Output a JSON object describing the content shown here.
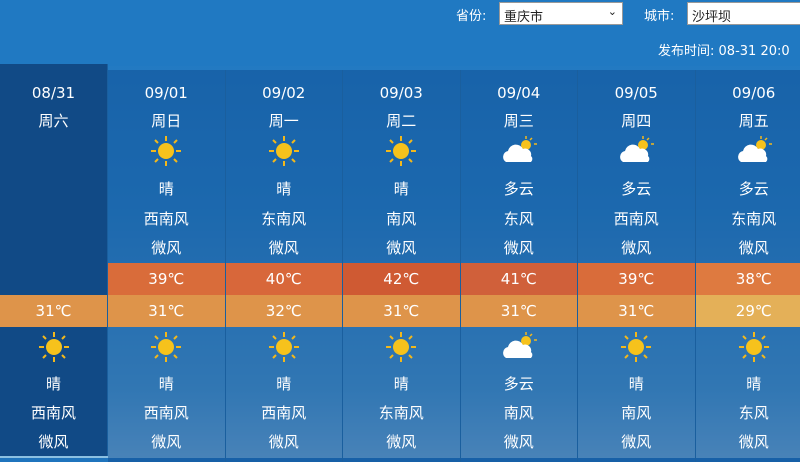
{
  "header": {
    "province_label": "省份:",
    "province_value": "重庆市",
    "city_label": "城市:",
    "city_value": "沙坪坝",
    "publish_label": "发布时间:",
    "publish_value": "08-31 20:0"
  },
  "colors": {
    "high_temp": [
      "#d96c3a",
      "#d8673a",
      "#cf5a33",
      "#d0603a",
      "#d96c3a",
      "#de7a40"
    ],
    "low_temp": [
      "#de944a",
      "#de944a",
      "#de944a",
      "#de944a",
      "#de944a",
      "#de944a",
      "#e4b058"
    ]
  },
  "days": [
    {
      "date": "08/31",
      "week": "周六",
      "high": "",
      "low": "31℃",
      "day_icon": "",
      "day_weather": "",
      "day_wind": "",
      "day_level": "",
      "night_icon": "sun-icon",
      "night_weather": "晴",
      "night_wind": "西南风",
      "night_level": "微风"
    },
    {
      "date": "09/01",
      "week": "周日",
      "high": "39℃",
      "low": "31℃",
      "day_icon": "sun-icon",
      "day_weather": "晴",
      "day_wind": "西南风",
      "day_level": "微风",
      "night_icon": "sun-icon",
      "night_weather": "晴",
      "night_wind": "西南风",
      "night_level": "微风"
    },
    {
      "date": "09/02",
      "week": "周一",
      "high": "40℃",
      "low": "32℃",
      "day_icon": "sun-icon",
      "day_weather": "晴",
      "day_wind": "东南风",
      "day_level": "微风",
      "night_icon": "sun-icon",
      "night_weather": "晴",
      "night_wind": "西南风",
      "night_level": "微风"
    },
    {
      "date": "09/03",
      "week": "周二",
      "high": "42℃",
      "low": "31℃",
      "day_icon": "sun-icon",
      "day_weather": "晴",
      "day_wind": "南风",
      "day_level": "微风",
      "night_icon": "sun-icon",
      "night_weather": "晴",
      "night_wind": "东南风",
      "night_level": "微风"
    },
    {
      "date": "09/04",
      "week": "周三",
      "high": "41℃",
      "low": "31℃",
      "day_icon": "cloud-sun-icon",
      "day_weather": "多云",
      "day_wind": "东风",
      "day_level": "微风",
      "night_icon": "cloud-sun-icon",
      "night_weather": "多云",
      "night_wind": "南风",
      "night_level": "微风"
    },
    {
      "date": "09/05",
      "week": "周四",
      "high": "39℃",
      "low": "31℃",
      "day_icon": "cloud-sun-icon",
      "day_weather": "多云",
      "day_wind": "西南风",
      "day_level": "微风",
      "night_icon": "sun-icon",
      "night_weather": "晴",
      "night_wind": "南风",
      "night_level": "微风"
    },
    {
      "date": "09/06",
      "week": "周五",
      "high": "38℃",
      "low": "29℃",
      "day_icon": "cloud-sun-icon",
      "day_weather": "多云",
      "day_wind": "东南风",
      "day_level": "微风",
      "night_icon": "sun-icon",
      "night_weather": "晴",
      "night_wind": "东风",
      "night_level": "微风"
    }
  ]
}
